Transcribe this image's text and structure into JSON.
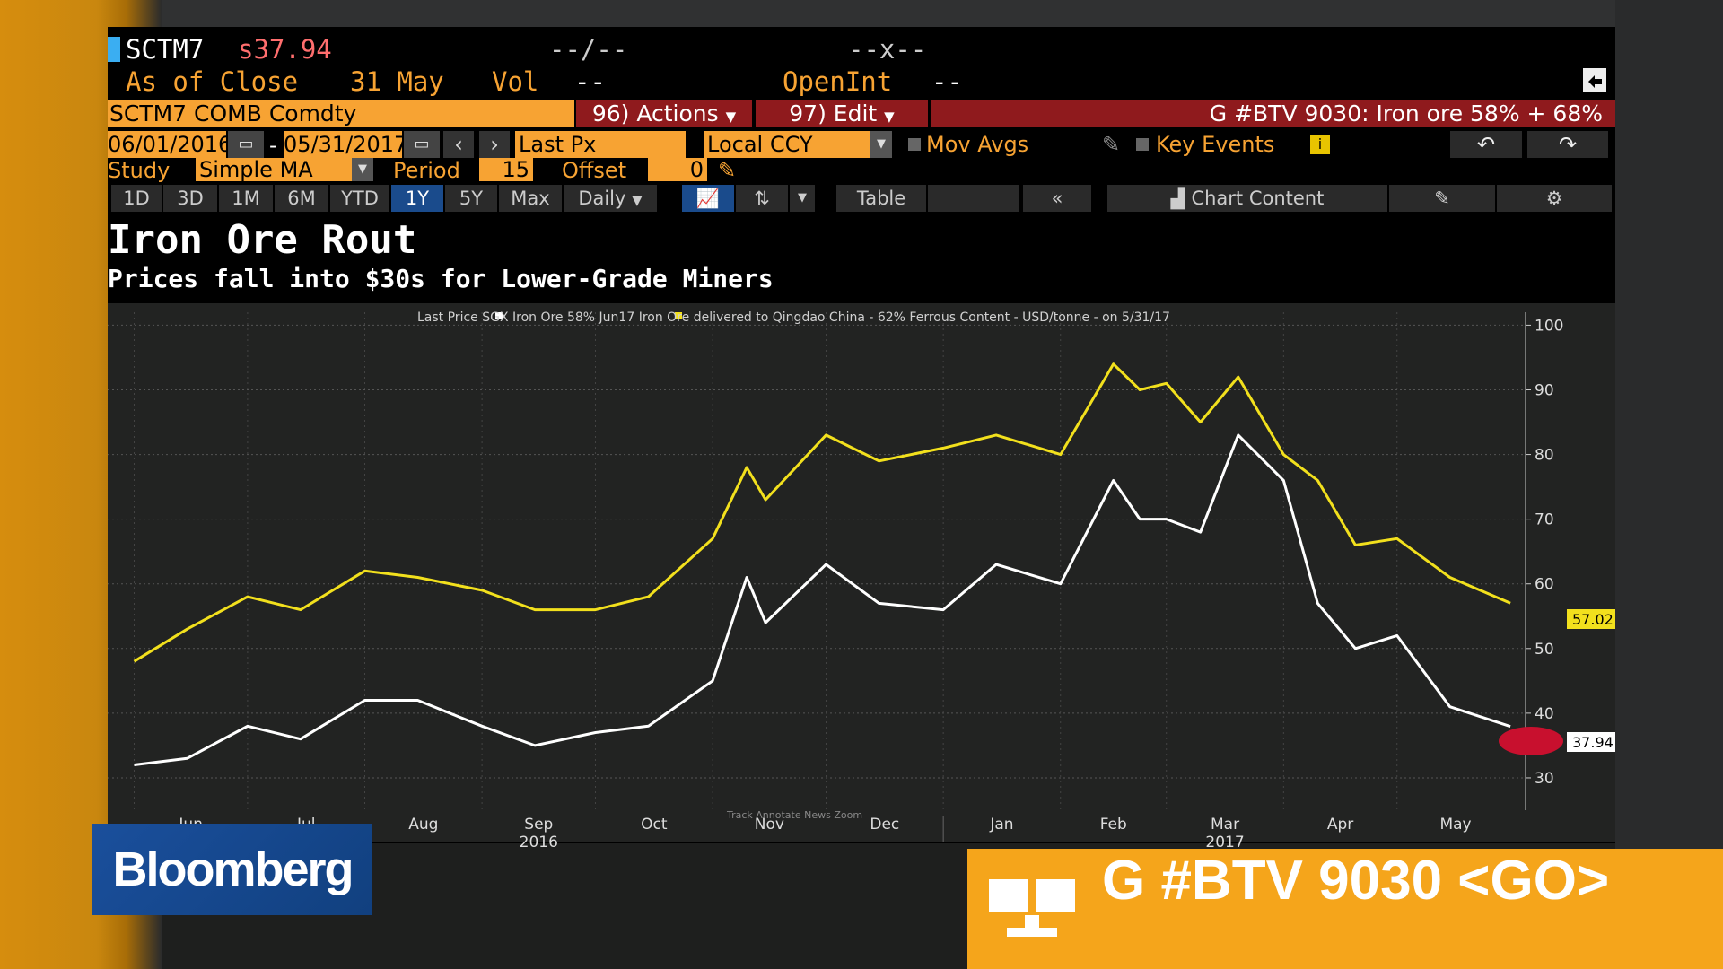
{
  "header": {
    "ticker": "SCTM7",
    "last_price": "s37.94",
    "bid_ask": "--/--",
    "cross": "--x--",
    "as_of_label": "As of Close",
    "as_of_date": "31 May",
    "vol_label": "Vol",
    "vol_value": "--",
    "openint_label": "OpenInt",
    "openint_value": "--"
  },
  "toolbar": {
    "security": "SCTM7 COMB Comdty",
    "actions": "96) Actions",
    "edit": "97) Edit",
    "function_title": "G #BTV 9030: Iron ore 58% + 68%",
    "start_date": "06/01/2016",
    "dash": "-",
    "end_date": "05/31/2017",
    "field": "Last Px",
    "currency": "Local CCY",
    "mov_avgs": "Mov Avgs",
    "key_events": "Key Events",
    "study_label": "Study",
    "study_value": "Simple MA",
    "period_label": "Period",
    "period_value": "15",
    "offset_label": "Offset",
    "offset_value": "0"
  },
  "range_tabs": [
    "1D",
    "3D",
    "1M",
    "6M",
    "YTD",
    "1Y",
    "5Y",
    "Max"
  ],
  "selected_range": "1Y",
  "frequency": "Daily",
  "table_label": "Table",
  "chart_content_label": "Chart Content",
  "chart_title": "Iron Ore Rout",
  "chart_subtitle": "Prices fall into $30s for Lower-Grade Miners",
  "legend_line": "Last Price  SGX Iron Ore 58% Jun17   Iron Ore delivered to Qingdao China - 62% Ferrous Content - USD/tonne - on 5/31/17",
  "bottom_controls": "Track  Annotate  News  Zoom",
  "bloomberg_logo": "Bloomberg",
  "go_banner": "G #BTV 9030 <GO>",
  "colors": {
    "series_62": "#f2e01d",
    "series_58": "#ffffff",
    "accent": "#f7a333",
    "banner": "#f5a51b"
  },
  "chart_data": {
    "type": "line",
    "title": "Iron Ore Rout",
    "subtitle": "Prices fall into $30s for Lower-Grade Miners",
    "x_axis_months": [
      "Jun",
      "Jul",
      "Aug",
      "Sep",
      "Oct",
      "Nov",
      "Dec",
      "Jan",
      "Feb",
      "Mar",
      "Apr",
      "May"
    ],
    "x_axis_years": [
      "2016",
      "2017"
    ],
    "ylim": [
      25,
      102
    ],
    "y_ticks": [
      30,
      40,
      50,
      60,
      70,
      80,
      90,
      100
    ],
    "grid": true,
    "last_value_labels": [
      "57.02",
      "37.94"
    ],
    "x": [
      "2016-06-01",
      "2016-06-15",
      "2016-07-01",
      "2016-07-15",
      "2016-08-01",
      "2016-08-15",
      "2016-09-01",
      "2016-09-15",
      "2016-10-01",
      "2016-10-15",
      "2016-11-01",
      "2016-11-10",
      "2016-11-15",
      "2016-12-01",
      "2016-12-15",
      "2017-01-01",
      "2017-01-15",
      "2017-02-01",
      "2017-02-15",
      "2017-02-22",
      "2017-03-01",
      "2017-03-10",
      "2017-03-20",
      "2017-04-01",
      "2017-04-10",
      "2017-04-20",
      "2017-05-01",
      "2017-05-15",
      "2017-05-31"
    ],
    "series": [
      {
        "name": "Iron Ore delivered to Qingdao China - 62% Ferrous Content - USD/tonne",
        "values": [
          48,
          53,
          58,
          56,
          62,
          61,
          59,
          56,
          56,
          58,
          67,
          78,
          73,
          83,
          79,
          81,
          83,
          80,
          94,
          90,
          91,
          85,
          92,
          80,
          76,
          66,
          67,
          61,
          57.02
        ]
      },
      {
        "name": "SGX Iron Ore 58% Jun17",
        "values": [
          32,
          33,
          38,
          36,
          42,
          42,
          38,
          35,
          37,
          38,
          45,
          61,
          54,
          63,
          57,
          56,
          63,
          60,
          76,
          70,
          70,
          68,
          83,
          76,
          57,
          50,
          52,
          41,
          37.94
        ]
      }
    ]
  }
}
